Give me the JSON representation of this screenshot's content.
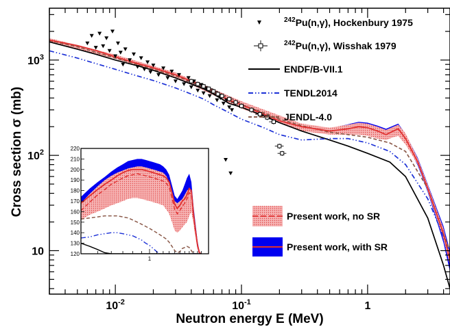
{
  "chart_data": {
    "type": "line",
    "title": "",
    "xlabel": "Neutron energy E (MeV)",
    "ylabel": "Cross section σ (mb)",
    "xscale": "log",
    "yscale": "log",
    "xlim": [
      0.003,
      4.5
    ],
    "ylim": [
      3.5,
      3500
    ],
    "x_ticks": [
      {
        "value": 0.01,
        "base": "10",
        "exp": "-2"
      },
      {
        "value": 0.1,
        "base": "10",
        "exp": "-1"
      },
      {
        "value": 1,
        "base": "1",
        "exp": ""
      }
    ],
    "y_ticks": [
      {
        "value": 10,
        "base": "10",
        "exp": ""
      },
      {
        "value": 100,
        "base": "10",
        "exp": "2"
      },
      {
        "value": 1000,
        "base": "10",
        "exp": "3"
      }
    ],
    "grid": false,
    "legend_position": "right",
    "legend": [
      {
        "id": "hock",
        "pre": "242",
        "text": "Pu(n,γ), Hockenbury 1975",
        "marker": "triangle-down",
        "color": "#000000"
      },
      {
        "id": "wiss",
        "pre": "242",
        "text": "Pu(n,γ), Wisshak 1979",
        "marker": "open-square",
        "color": "#000000"
      },
      {
        "id": "endf",
        "pre": "",
        "text": "ENDF/B-VII.1",
        "marker": "solid-line",
        "color": "#000000"
      },
      {
        "id": "tendl",
        "pre": "",
        "text": "TENDL2014",
        "marker": "dash-dot-line",
        "color": "#1a2fd6"
      },
      {
        "id": "jendl",
        "pre": "",
        "text": "JENDL-4.0",
        "marker": "dashed-line",
        "color": "#8b5a4a"
      },
      {
        "id": "nosr",
        "pre": "",
        "text": "Present work, no SR",
        "marker": "band-dashed",
        "color": "#f08c8c"
      },
      {
        "id": "sr",
        "pre": "",
        "text": "Present work, with SR",
        "marker": "band-solid",
        "color": "#0000f0"
      }
    ],
    "series": [
      {
        "id": "endf",
        "color": "#000000",
        "style": "solid",
        "x": [
          0.003,
          0.005,
          0.007,
          0.01,
          0.015,
          0.02,
          0.03,
          0.04,
          0.05,
          0.06,
          0.08,
          0.1,
          0.15,
          0.2,
          0.3,
          0.5,
          0.7,
          1.0,
          1.5,
          2.0,
          3.0,
          4.0,
          4.5
        ],
        "y": [
          1550,
          1300,
          1150,
          1000,
          870,
          780,
          650,
          560,
          500,
          440,
          350,
          320,
          260,
          220,
          180,
          145,
          125,
          105,
          85,
          60,
          22,
          7,
          4
        ]
      },
      {
        "id": "tendl",
        "color": "#1a2fd6",
        "style": "dashdot",
        "x": [
          0.003,
          0.005,
          0.007,
          0.01,
          0.015,
          0.02,
          0.03,
          0.04,
          0.05,
          0.06,
          0.08,
          0.1,
          0.15,
          0.2,
          0.3,
          0.5,
          0.7,
          1.0,
          1.5,
          2.0,
          3.0,
          4.0,
          4.5
        ],
        "y": [
          1250,
          1050,
          920,
          800,
          680,
          610,
          510,
          440,
          390,
          340,
          280,
          240,
          195,
          165,
          145,
          150,
          150,
          135,
          110,
          80,
          35,
          14,
          9
        ]
      },
      {
        "id": "jendl",
        "color": "#8b5a4a",
        "style": "dashed",
        "x": [
          0.003,
          0.005,
          0.007,
          0.01,
          0.015,
          0.02,
          0.03,
          0.04,
          0.05,
          0.06,
          0.08,
          0.1,
          0.15,
          0.2,
          0.3,
          0.5,
          0.7,
          1.0,
          1.5,
          2.0,
          3.0,
          4.0,
          4.5
        ],
        "y": [
          1600,
          1380,
          1210,
          1050,
          900,
          800,
          680,
          590,
          530,
          470,
          370,
          340,
          280,
          240,
          205,
          175,
          165,
          155,
          135,
          110,
          45,
          15,
          10
        ]
      },
      {
        "id": "sr",
        "color": "#e03030",
        "style": "solid",
        "x": [
          0.003,
          0.005,
          0.007,
          0.01,
          0.015,
          0.02,
          0.03,
          0.04,
          0.05,
          0.06,
          0.08,
          0.1,
          0.15,
          0.2,
          0.3,
          0.5,
          0.7,
          0.85,
          1.0,
          1.2,
          1.4,
          1.6,
          1.75,
          2.0,
          2.5,
          3.0,
          4.0,
          4.5
        ],
        "y": [
          1620,
          1420,
          1260,
          1080,
          920,
          830,
          700,
          600,
          540,
          470,
          380,
          340,
          270,
          230,
          200,
          180,
          190,
          200,
          195,
          180,
          165,
          180,
          190,
          150,
          85,
          45,
          15,
          8
        ]
      }
    ],
    "band_no_sr": {
      "x": [
        0.003,
        0.01,
        0.03,
        0.1,
        0.3,
        0.5,
        0.7,
        0.85,
        1.0,
        1.2,
        1.4,
        1.6,
        1.75,
        2.0,
        2.5,
        3.0,
        4.0,
        4.5
      ],
      "lower": [
        1540,
        1030,
        660,
        310,
        180,
        165,
        165,
        165,
        160,
        150,
        145,
        155,
        160,
        130,
        80,
        42,
        13,
        7
      ],
      "upper": [
        1700,
        1140,
        740,
        370,
        215,
        195,
        210,
        220,
        215,
        200,
        185,
        200,
        210,
        170,
        92,
        49,
        17,
        9
      ]
    },
    "band_sr": {
      "x": [
        0.003,
        0.01,
        0.03,
        0.1,
        0.3,
        0.5,
        0.7,
        0.85,
        1.0,
        1.2,
        1.4,
        1.6,
        1.75,
        2.0,
        2.5,
        3.0,
        4.0,
        4.5
      ],
      "lower": [
        1560,
        1040,
        670,
        320,
        190,
        170,
        175,
        180,
        175,
        160,
        150,
        160,
        170,
        140,
        78,
        41,
        12,
        6
      ],
      "upper": [
        1690,
        1130,
        735,
        362,
        212,
        192,
        212,
        225,
        220,
        205,
        190,
        205,
        215,
        168,
        94,
        50,
        18,
        10
      ]
    },
    "hockenbury": {
      "x": [
        0.006,
        0.0065,
        0.007,
        0.0075,
        0.008,
        0.0085,
        0.009,
        0.0095,
        0.01,
        0.0105,
        0.011,
        0.0115,
        0.012,
        0.013,
        0.014,
        0.015,
        0.016,
        0.017,
        0.018,
        0.019,
        0.02,
        0.022,
        0.024,
        0.026,
        0.028,
        0.03,
        0.032,
        0.035,
        0.038,
        0.04,
        0.042,
        0.045,
        0.048,
        0.05,
        0.053,
        0.056,
        0.06,
        0.064,
        0.068,
        0.072,
        0.076,
        0.08,
        0.084,
        0.075,
        0.082
      ],
      "y": [
        1500,
        1800,
        1350,
        1900,
        1400,
        1700,
        1250,
        2000,
        1100,
        1500,
        1200,
        900,
        1300,
        1000,
        1150,
        850,
        1050,
        800,
        950,
        750,
        880,
        700,
        820,
        650,
        760,
        600,
        700,
        560,
        650,
        520,
        600,
        480,
        550,
        450,
        500,
        420,
        470,
        380,
        400,
        350,
        380,
        320,
        300,
        90,
        65
      ]
    },
    "wisshak": {
      "x": [
        0.04,
        0.045,
        0.05,
        0.055,
        0.06,
        0.065,
        0.07,
        0.08,
        0.09,
        0.1,
        0.12,
        0.14,
        0.16,
        0.18,
        0.2,
        0.21
      ],
      "y": [
        600,
        560,
        530,
        500,
        470,
        440,
        420,
        390,
        360,
        330,
        300,
        270,
        250,
        225,
        125,
        105
      ],
      "xerr": 0.08,
      "yerr": 0.06
    },
    "inset": {
      "xscale": "log",
      "xlim": [
        0.4,
        2.2
      ],
      "ylim": [
        120,
        220
      ],
      "x_ticks": [
        {
          "value": 1,
          "label": "1"
        }
      ],
      "y_ticks": [
        {
          "value": 120,
          "label": "120"
        },
        {
          "value": 130,
          "label": "130"
        },
        {
          "value": 140,
          "label": "140"
        },
        {
          "value": 150,
          "label": "150"
        },
        {
          "value": 160,
          "label": "160"
        },
        {
          "value": 170,
          "label": "170"
        },
        {
          "value": 180,
          "label": "180"
        },
        {
          "value": 190,
          "label": "190"
        },
        {
          "value": 200,
          "label": "200"
        },
        {
          "value": 210,
          "label": "210"
        },
        {
          "value": 220,
          "label": "220"
        }
      ],
      "x": [
        0.4,
        0.45,
        0.5,
        0.55,
        0.6,
        0.65,
        0.7,
        0.75,
        0.8,
        0.85,
        0.9,
        0.95,
        1.0,
        1.05,
        1.1,
        1.15,
        1.2,
        1.25,
        1.3,
        1.35,
        1.4,
        1.45,
        1.5,
        1.55,
        1.6,
        1.65,
        1.7,
        1.75,
        1.8,
        1.85,
        1.9,
        1.95,
        2.0
      ],
      "sr_lower": [
        162,
        168,
        173,
        178,
        182,
        185,
        188,
        189,
        190,
        190,
        189,
        188,
        187,
        186,
        185,
        184,
        184,
        183,
        180,
        170,
        158,
        155,
        157,
        160,
        158,
        160,
        168,
        173,
        152,
        138,
        124,
        120,
        120
      ],
      "sr_upper": [
        174,
        182,
        188,
        193,
        198,
        202,
        205,
        208,
        209,
        210,
        210,
        209,
        208,
        207,
        206,
        205,
        203,
        200,
        195,
        185,
        175,
        172,
        176,
        180,
        186,
        192,
        196,
        188,
        165,
        148,
        132,
        122,
        120
      ],
      "nosr_lower": [
        152,
        157,
        160,
        163,
        166,
        168,
        170,
        172,
        173,
        173,
        172,
        171,
        170,
        169,
        168,
        167,
        166,
        162,
        158,
        150,
        142,
        140,
        142,
        145,
        148,
        150,
        156,
        160,
        148,
        135,
        124,
        120,
        120
      ],
      "nosr_upper": [
        168,
        177,
        184,
        190,
        194,
        197,
        199,
        201,
        202,
        203,
        203,
        202,
        201,
        200,
        199,
        198,
        197,
        194,
        188,
        180,
        170,
        168,
        170,
        172,
        176,
        180,
        182,
        178,
        160,
        145,
        130,
        121,
        120
      ],
      "sr_central": [
        168,
        175,
        181,
        186,
        190,
        194,
        197,
        199,
        200,
        200,
        200,
        199,
        198,
        197,
        196,
        195,
        194,
        192,
        188,
        178,
        167,
        163,
        166,
        170,
        172,
        176,
        182,
        180,
        158,
        142,
        128,
        121,
        120
      ],
      "nosr_central": [
        161,
        169,
        176,
        181,
        186,
        189,
        192,
        194,
        195,
        196,
        195,
        194,
        193,
        192,
        191,
        190,
        189,
        187,
        183,
        173,
        162,
        158,
        161,
        165,
        168,
        172,
        178,
        176,
        155,
        140,
        127,
        120,
        120
      ],
      "jendl": [
        153,
        154,
        155,
        156,
        156,
        156,
        155,
        154,
        152,
        150,
        148,
        146,
        144,
        142,
        140,
        138,
        136,
        134,
        131,
        127,
        123,
        121,
        122,
        125,
        126,
        127,
        126,
        123,
        120,
        120,
        120,
        120,
        120
      ],
      "tendl": [
        135,
        136,
        138,
        139,
        140,
        140,
        139,
        138,
        137,
        135,
        133,
        130,
        128,
        125,
        122,
        120,
        120,
        120,
        120,
        120,
        120,
        120,
        120,
        120,
        120,
        120,
        120,
        120,
        120,
        120,
        120,
        120,
        120
      ],
      "endf": [
        130,
        127,
        124,
        121,
        120,
        120,
        120,
        120,
        120,
        120,
        120,
        120,
        120,
        120,
        120,
        120,
        120,
        120,
        120,
        120,
        120,
        120,
        120,
        120,
        120,
        120,
        120,
        120,
        120,
        120,
        120,
        120,
        120
      ]
    }
  }
}
